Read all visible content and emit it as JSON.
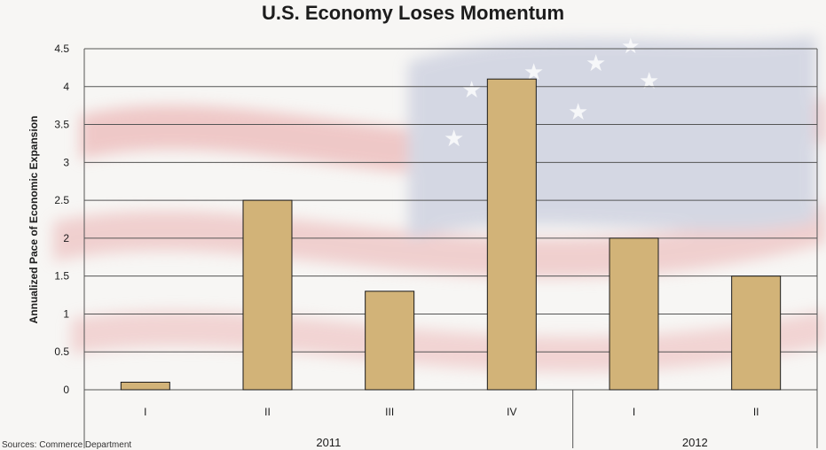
{
  "chart_data": {
    "type": "bar",
    "title": "U.S. Economy Loses Momentum",
    "ylabel": "Annualized Pace of Economic Expansion",
    "xlabel": "",
    "categories": [
      "I",
      "II",
      "III",
      "IV",
      "I",
      "II"
    ],
    "groups": [
      {
        "label": "2011",
        "categories": [
          "I",
          "II",
          "III",
          "IV"
        ]
      },
      {
        "label": "2012",
        "categories": [
          "I",
          "II"
        ]
      }
    ],
    "values": [
      0.1,
      2.5,
      1.3,
      4.1,
      2.0,
      1.5
    ],
    "ylim": [
      0,
      4.5
    ],
    "yticks": [
      "0",
      "0.5",
      "1",
      "1.5",
      "2",
      "2.5",
      "3",
      "3.5",
      "4",
      "4.5"
    ],
    "grid": true,
    "legend": "none",
    "bar_color": "#d2b378",
    "bar_edge_color": "#1a1a1a"
  },
  "footnote": "Sources: Commerce Department"
}
